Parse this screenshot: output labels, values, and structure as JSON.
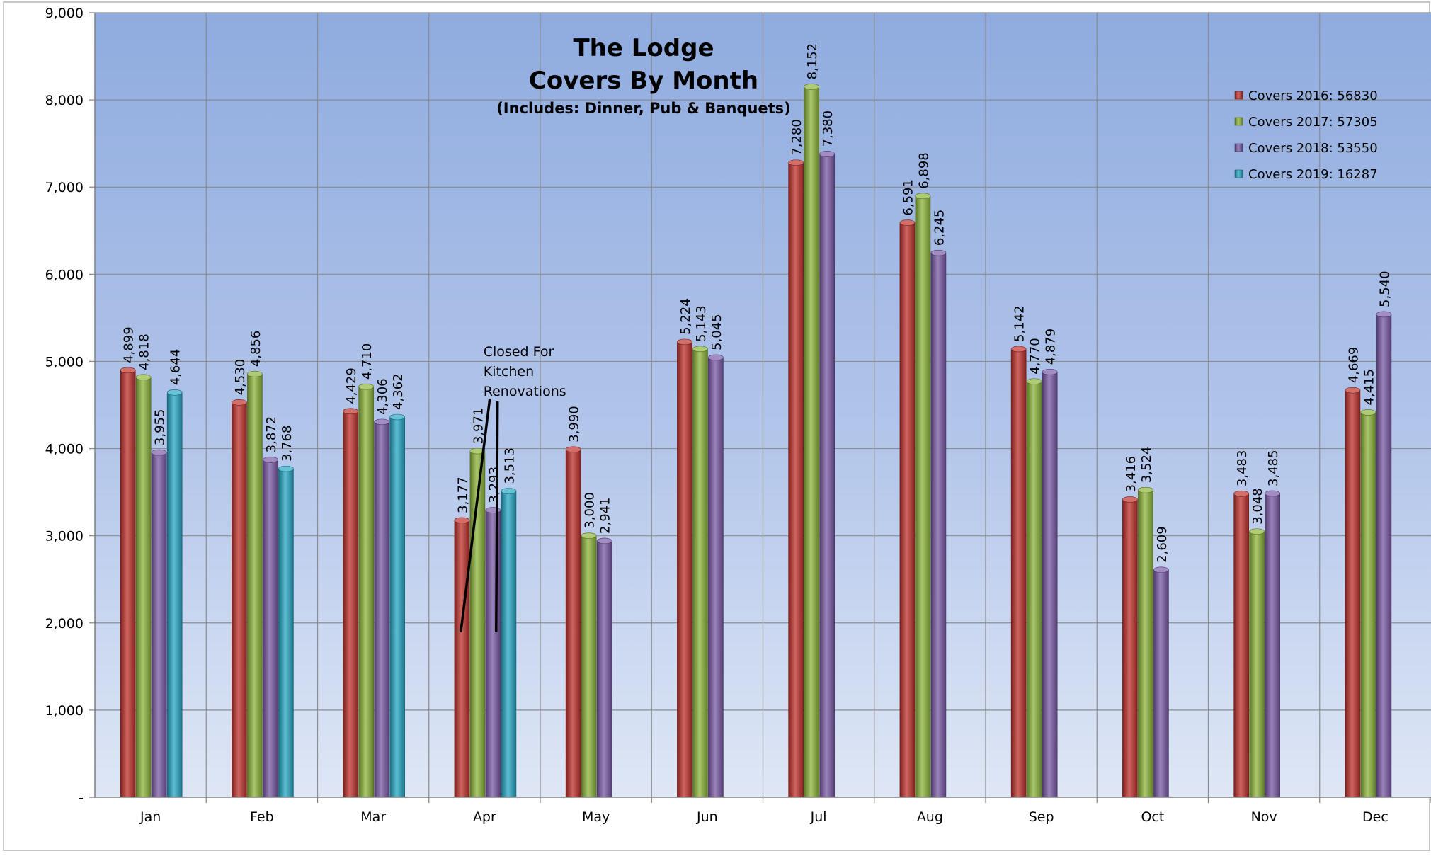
{
  "chart_data": {
    "type": "bar",
    "title_lines": [
      "The Lodge",
      "Covers By Month"
    ],
    "subtitle": "(Includes: Dinner, Pub & Banquets)",
    "xlabel": "",
    "ylabel": "",
    "ylim": [
      0,
      9000
    ],
    "yticks": [
      0,
      1000,
      2000,
      3000,
      4000,
      5000,
      6000,
      7000,
      8000,
      9000
    ],
    "ytick_labels": [
      "-",
      "1,000",
      "2,000",
      "3,000",
      "4,000",
      "5,000",
      "6,000",
      "7,000",
      "8,000",
      "9,000"
    ],
    "grid": true,
    "legend_position": "top-right",
    "categories": [
      "Jan",
      "Feb",
      "Mar",
      "Apr",
      "May",
      "Jun",
      "Jul",
      "Aug",
      "Sep",
      "Oct",
      "Nov",
      "Dec"
    ],
    "series": [
      {
        "name": "Covers 2016:",
        "total": "56830",
        "color": "#c0312b",
        "values": [
          4899,
          4530,
          4429,
          3177,
          3990,
          5224,
          7280,
          6591,
          5142,
          3416,
          3483,
          4669
        ]
      },
      {
        "name": "Covers 2017:",
        "total": "57305",
        "color": "#8db53a",
        "values": [
          4818,
          4856,
          4710,
          3971,
          3000,
          5143,
          8152,
          6898,
          4770,
          3524,
          3048,
          4415
        ]
      },
      {
        "name": "Covers 2018:",
        "total": "53550",
        "color": "#7a5aa6",
        "values": [
          3955,
          3872,
          4306,
          3293,
          2941,
          5045,
          7380,
          6245,
          4879,
          2609,
          3485,
          5540
        ]
      },
      {
        "name": "Covers 2019:",
        "total": "16287",
        "color": "#27a8c6",
        "values": [
          4644,
          3768,
          4362,
          3513,
          null,
          null,
          null,
          null,
          null,
          null,
          null,
          null
        ]
      }
    ],
    "annotation": {
      "lines": [
        "Closed For",
        "Kitchen",
        "Renovations"
      ],
      "category": "Apr"
    }
  }
}
